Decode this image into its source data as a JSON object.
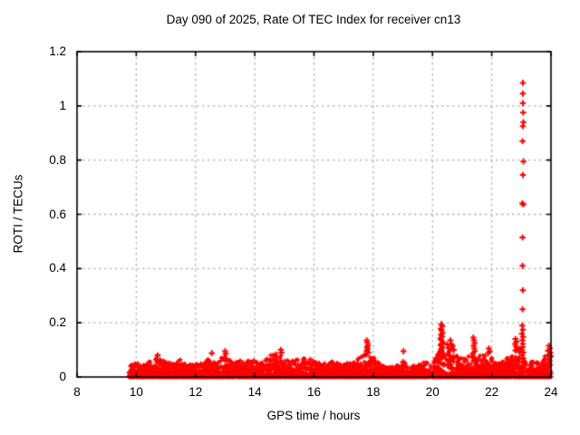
{
  "chart_data": {
    "type": "scatter",
    "title": "Day 090 of 2025, Rate Of TEC Index for receiver cn13",
    "xlabel": "GPS time / hours",
    "ylabel": "ROTI / TECUs",
    "receiver": "cn13",
    "day_of_year": "090",
    "year": "2025",
    "xlim": [
      8,
      24
    ],
    "ylim": [
      0,
      1.2
    ],
    "xticks": [
      8,
      10,
      12,
      14,
      16,
      18,
      20,
      22,
      24
    ],
    "yticks": [
      0,
      0.2,
      0.4,
      0.6,
      0.8,
      1,
      1.2
    ],
    "grid": true,
    "legend": "none",
    "marker": {
      "shape": "plus",
      "color": "#ff0000"
    },
    "plot_style": {
      "background": "#ffffff",
      "axis_color": "#000000",
      "grid_color": "#b3b3b3",
      "grid_dash": [
        2.5,
        3.5
      ]
    },
    "series": [
      {
        "name": "ROTI",
        "band": {
          "description": "Dense quasi-continuous band of low ROTI values starting near 9.75 h and running to 24 h; envelope_max approximates the ragged upper edge of the band versus GPS hour, with most samples packed between 0 and ~0.04 TECU.",
          "x_start": 9.75,
          "x_end": 24.0,
          "density_per_hour": 270,
          "value_floor": 0.0,
          "envelope_x": [
            9.75,
            10,
            10.25,
            10.5,
            10.75,
            11,
            11.25,
            11.5,
            11.75,
            12,
            12.25,
            12.5,
            12.75,
            13,
            13.25,
            13.5,
            13.75,
            14,
            14.25,
            14.5,
            14.75,
            15,
            15.25,
            15.5,
            15.75,
            16,
            16.25,
            16.5,
            16.75,
            17,
            17.25,
            17.5,
            17.75,
            18,
            18.25,
            18.5,
            18.75,
            19,
            19.25,
            19.5,
            19.75,
            20,
            20.25,
            20.5,
            20.75,
            21,
            21.25,
            21.5,
            21.75,
            22,
            22.25,
            22.5,
            22.75,
            23,
            23.25,
            23.5,
            23.75,
            24
          ],
          "envelope_max": [
            0.045,
            0.055,
            0.05,
            0.06,
            0.075,
            0.055,
            0.05,
            0.065,
            0.045,
            0.05,
            0.055,
            0.07,
            0.055,
            0.09,
            0.05,
            0.065,
            0.06,
            0.065,
            0.055,
            0.08,
            0.095,
            0.07,
            0.06,
            0.065,
            0.07,
            0.065,
            0.055,
            0.06,
            0.055,
            0.05,
            0.06,
            0.07,
            0.09,
            0.075,
            0.045,
            0.035,
            0.04,
            0.06,
            0.04,
            0.045,
            0.055,
            0.06,
            0.1,
            0.09,
            0.08,
            0.07,
            0.09,
            0.075,
            0.085,
            0.07,
            0.05,
            0.07,
            0.1,
            0.11,
            0.06,
            0.055,
            0.08,
            0.09
          ]
        },
        "outliers": [
          [
            23.05,
            1.085
          ],
          [
            23.05,
            1.045
          ],
          [
            23.05,
            1.01
          ],
          [
            23.06,
            0.975
          ],
          [
            23.07,
            0.94
          ],
          [
            23.05,
            0.925
          ],
          [
            23.04,
            0.87
          ],
          [
            23.07,
            0.795
          ],
          [
            23.05,
            0.745
          ],
          [
            23.03,
            0.64
          ],
          [
            23.07,
            0.637
          ],
          [
            23.04,
            0.515
          ],
          [
            23.04,
            0.41
          ],
          [
            23.05,
            0.32
          ],
          [
            23.04,
            0.25
          ],
          [
            23.03,
            0.19
          ],
          [
            23.05,
            0.175
          ],
          [
            23.02,
            0.16
          ],
          [
            23.06,
            0.148
          ],
          [
            23.03,
            0.135
          ],
          [
            23.05,
            0.122
          ],
          [
            23.04,
            0.11
          ],
          [
            23.02,
            0.1
          ],
          [
            23.06,
            0.09
          ],
          [
            23.03,
            0.08
          ],
          [
            23.05,
            0.07
          ],
          [
            20.3,
            0.195
          ],
          [
            20.33,
            0.187
          ],
          [
            20.28,
            0.178
          ],
          [
            20.31,
            0.171
          ],
          [
            20.34,
            0.162
          ],
          [
            20.29,
            0.156
          ],
          [
            20.32,
            0.149
          ],
          [
            20.27,
            0.142
          ],
          [
            20.3,
            0.136
          ],
          [
            20.35,
            0.128
          ],
          [
            20.3,
            0.122
          ],
          [
            20.28,
            0.116
          ],
          [
            20.33,
            0.11
          ],
          [
            20.3,
            0.104
          ],
          [
            20.29,
            0.098
          ],
          [
            20.32,
            0.092
          ],
          [
            20.3,
            0.086
          ],
          [
            20.26,
            0.08
          ],
          [
            20.36,
            0.075
          ],
          [
            20.24,
            0.07
          ],
          [
            20.5,
            0.12
          ],
          [
            20.55,
            0.105
          ],
          [
            20.6,
            0.135
          ],
          [
            20.63,
            0.12
          ],
          [
            20.58,
            0.095
          ],
          [
            20.52,
            0.085
          ],
          [
            20.68,
            0.115
          ],
          [
            20.72,
            0.1
          ],
          [
            21.38,
            0.145
          ],
          [
            21.4,
            0.135
          ],
          [
            21.42,
            0.125
          ],
          [
            21.39,
            0.115
          ],
          [
            21.41,
            0.105
          ],
          [
            21.43,
            0.095
          ],
          [
            21.37,
            0.088
          ],
          [
            21.9,
            0.105
          ],
          [
            21.93,
            0.095
          ],
          [
            21.88,
            0.088
          ],
          [
            17.78,
            0.135
          ],
          [
            17.8,
            0.127
          ],
          [
            17.82,
            0.118
          ],
          [
            17.79,
            0.11
          ],
          [
            17.81,
            0.103
          ],
          [
            17.78,
            0.096
          ],
          [
            17.83,
            0.09
          ],
          [
            17.76,
            0.084
          ],
          [
            19.02,
            0.095
          ],
          [
            19.0,
            0.055
          ],
          [
            22.8,
            0.14
          ],
          [
            22.83,
            0.13
          ],
          [
            22.79,
            0.122
          ],
          [
            22.82,
            0.113
          ],
          [
            22.85,
            0.105
          ],
          [
            22.8,
            0.098
          ],
          [
            23.93,
            0.115
          ],
          [
            23.96,
            0.105
          ],
          [
            23.9,
            0.097
          ],
          [
            23.97,
            0.09
          ],
          [
            23.94,
            0.083
          ],
          [
            23.99,
            0.076
          ],
          [
            14.88,
            0.1
          ],
          [
            14.9,
            0.09
          ],
          [
            13.0,
            0.095
          ],
          [
            13.02,
            0.085
          ],
          [
            12.55,
            0.088
          ],
          [
            10.72,
            0.08
          ]
        ]
      }
    ]
  }
}
